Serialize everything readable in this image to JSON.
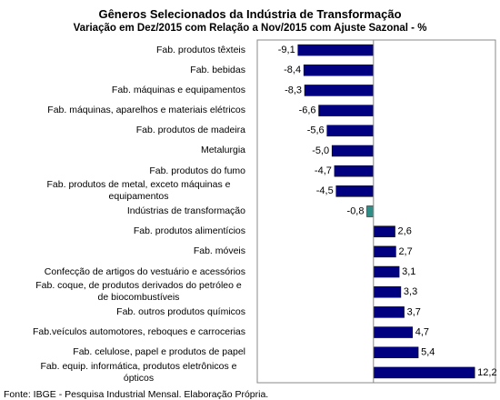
{
  "chart_data": {
    "type": "hbar",
    "title": "Gêneros Selecionados da Indústria de Transformação",
    "subtitle": "Variação em Dez/2015 com Relação a Nov/2015 com Ajuste Sazonal - %",
    "source": "Fonte: IBGE - Pesquisa Industrial Mensal. Elaboração Própria.",
    "categories": [
      "Fab. produtos têxteis",
      "Fab. bebidas",
      "Fab. máquinas e equipamentos",
      "Fab. máquinas, aparelhos e materiais elétricos",
      "Fab. produtos de madeira",
      "Metalurgia",
      "Fab. produtos do fumo",
      "Fab. produtos de metal, exceto máquinas e equipamentos",
      "Indústrias de transformação",
      "Fab. produtos alimentícios",
      "Fab. móveis",
      "Confecção de artigos do vestuário e acessórios",
      "Fab. coque, de produtos derivados do petróleo e de biocombustíveis",
      "Fab. outros produtos químicos",
      "Fab.veículos automotores, reboques e carrocerias",
      "Fab. celulose, papel e produtos de papel",
      "Fab. equip. informática, produtos eletrônicos e ópticos"
    ],
    "values": [
      -9.1,
      -8.4,
      -8.3,
      -6.6,
      -5.6,
      -5.0,
      -4.7,
      -4.5,
      -0.8,
      2.6,
      2.7,
      3.1,
      3.3,
      3.7,
      4.7,
      5.4,
      12.2
    ],
    "value_labels": [
      "-9,1",
      "-8,4",
      "-8,3",
      "-6,6",
      "-5,6",
      "-5,0",
      "-4,7",
      "-4,5",
      "-0,8",
      "2,6",
      "2,7",
      "3,1",
      "3,3",
      "3,7",
      "4,7",
      "5,4",
      "12,2"
    ],
    "colors": [
      "#000080",
      "#000080",
      "#000080",
      "#000080",
      "#000080",
      "#000080",
      "#000080",
      "#000080",
      "#2f8f86",
      "#000080",
      "#000080",
      "#000080",
      "#000080",
      "#000080",
      "#000080",
      "#000080",
      "#000080"
    ],
    "xlim": [
      -14,
      14.7
    ]
  }
}
